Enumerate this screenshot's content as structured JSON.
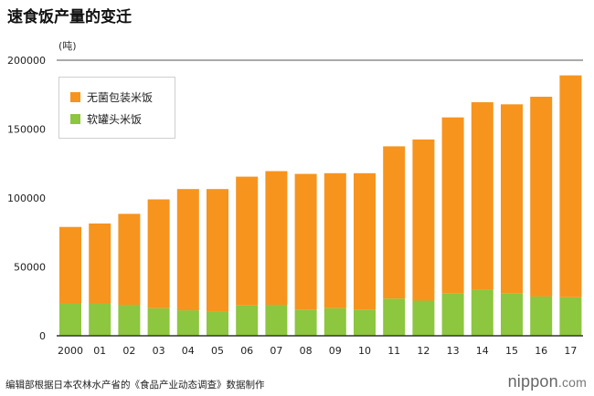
{
  "title": "速食饭产量的变迁",
  "unit": "(吨)",
  "footer": "编辑部根据日本农林水产省的《食品产业动态调查》数据制作",
  "logo": {
    "main": "nippon",
    "suffix": ".com"
  },
  "colors": {
    "instant": "#f7941d",
    "canned": "#8dc63f",
    "axis": "#333333"
  },
  "chart_data": {
    "type": "bar",
    "stacked": true,
    "categories": [
      "2000",
      "01",
      "02",
      "03",
      "04",
      "05",
      "06",
      "07",
      "08",
      "09",
      "10",
      "11",
      "12",
      "13",
      "14",
      "15",
      "16",
      "17"
    ],
    "series": [
      {
        "name": "软罐头米饭",
        "color": "#8dc63f",
        "values": [
          23500,
          23500,
          22500,
          20000,
          18500,
          17500,
          22000,
          22500,
          19000,
          20000,
          19000,
          27000,
          25500,
          31000,
          33500,
          31000,
          28500,
          28000
        ]
      },
      {
        "name": "无菌包装米饭",
        "color": "#f7941d",
        "values": [
          55500,
          58000,
          66000,
          79000,
          88000,
          89000,
          93500,
          97000,
          98500,
          98000,
          99000,
          110500,
          117000,
          127500,
          136000,
          137000,
          145000,
          161000
        ]
      }
    ],
    "legend_order": [
      "无菌包装米饭",
      "软罐头米饭"
    ],
    "legend_position": "top-left",
    "ylim": [
      0,
      200000
    ],
    "yticks": [
      0,
      50000,
      100000,
      150000,
      200000
    ],
    "ylabel": "(吨)",
    "xlabel": ""
  }
}
